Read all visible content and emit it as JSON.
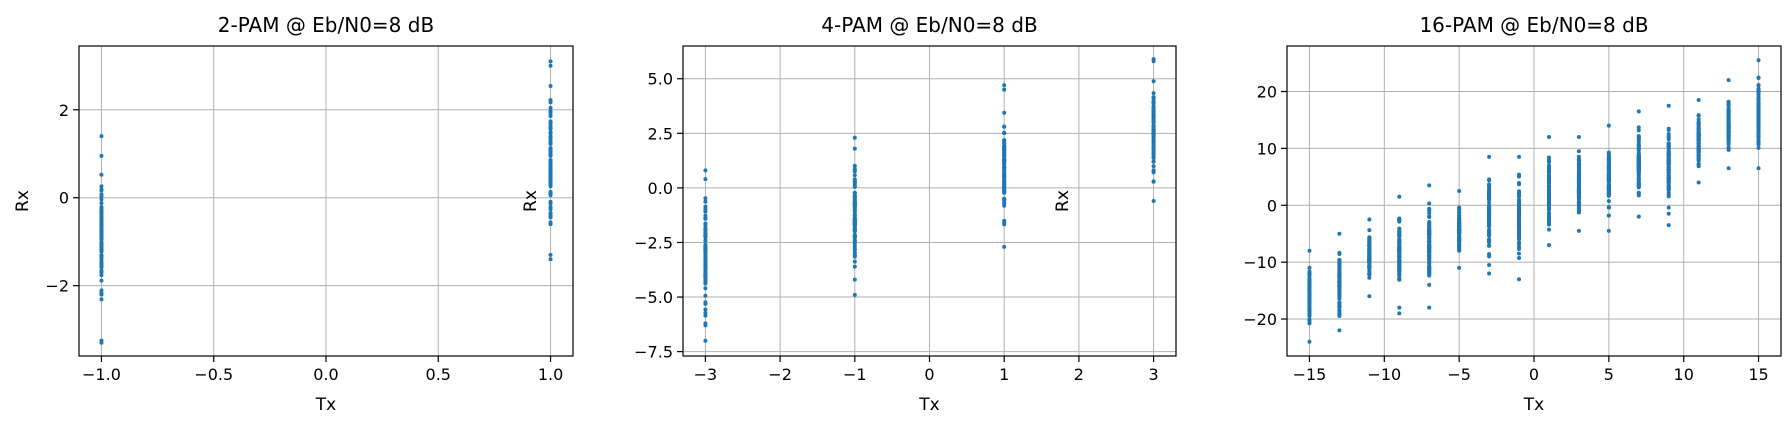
{
  "chart_data": [
    {
      "type": "scatter",
      "title": "2-PAM @ Eb/N0=8 dB",
      "xlabel": "Tx",
      "ylabel": "Rx",
      "xlim": [
        -1.1,
        1.1
      ],
      "ylim": [
        -3.6,
        3.45
      ],
      "xticks": [
        -1.0,
        -0.5,
        0.0,
        0.5,
        1.0
      ],
      "xtick_labels": [
        "−1.0",
        "−0.5",
        "0.0",
        "0.5",
        "1.0"
      ],
      "yticks": [
        -2,
        0,
        2
      ],
      "ytick_labels": [
        "−2",
        "0",
        "2"
      ],
      "grid": true,
      "color": "#1f77b4",
      "levels": [
        {
          "tx": -1,
          "rx_min": -3.3,
          "rx_max": 1.4,
          "outliers": [
            -3.3,
            -3.25,
            0.95,
            1.4
          ]
        },
        {
          "tx": 1,
          "rx_min": -1.4,
          "rx_max": 3.1,
          "outliers": [
            -1.4,
            -1.3,
            3.0,
            3.1
          ]
        }
      ]
    },
    {
      "type": "scatter",
      "title": "4-PAM @ Eb/N0=8 dB",
      "xlabel": "Tx",
      "ylabel": "Rx",
      "xlim": [
        -3.3,
        3.3
      ],
      "ylim": [
        -7.7,
        6.5
      ],
      "xticks": [
        -3,
        -2,
        -1,
        0,
        1,
        2,
        3
      ],
      "xtick_labels": [
        "−3",
        "−2",
        "−1",
        "0",
        "1",
        "2",
        "3"
      ],
      "yticks": [
        -7.5,
        -5.0,
        -2.5,
        0.0,
        2.5,
        5.0
      ],
      "ytick_labels": [
        "−7.5",
        "−5.0",
        "−2.5",
        "0.0",
        "2.5",
        "5.0"
      ],
      "grid": true,
      "color": "#1f77b4",
      "levels": [
        {
          "tx": -3,
          "rx_min": -7.0,
          "rx_max": 0.8,
          "outliers": [
            -7.0,
            -6.3,
            0.4,
            0.8
          ]
        },
        {
          "tx": -1,
          "rx_min": -4.9,
          "rx_max": 2.3,
          "outliers": [
            -4.9,
            -4.2,
            1.8,
            2.3
          ]
        },
        {
          "tx": 1,
          "rx_min": -2.7,
          "rx_max": 4.7,
          "outliers": [
            -2.7,
            -1.6,
            4.5,
            4.7
          ]
        },
        {
          "tx": 3,
          "rx_min": -0.6,
          "rx_max": 5.9,
          "outliers": [
            -0.6,
            0.3,
            5.8,
            5.9
          ]
        }
      ]
    },
    {
      "type": "scatter",
      "title": "16-PAM @ Eb/N0=8 dB",
      "xlabel": "Tx",
      "ylabel": "Rx",
      "xlim": [
        -16.5,
        16.5
      ],
      "ylim": [
        -26.5,
        28
      ],
      "xticks": [
        -15,
        -10,
        -5,
        0,
        5,
        10,
        15
      ],
      "xtick_labels": [
        "−15",
        "−10",
        "−5",
        "0",
        "5",
        "10",
        "15"
      ],
      "yticks": [
        -20,
        -10,
        0,
        10,
        20
      ],
      "ytick_labels": [
        "−20",
        "−10",
        "0",
        "10",
        "20"
      ],
      "grid": true,
      "color": "#1f77b4",
      "levels": [
        {
          "tx": -15,
          "rx_min": -24,
          "rx_max": -8,
          "outliers": [
            -24,
            -8
          ]
        },
        {
          "tx": -13,
          "rx_min": -22,
          "rx_max": -5,
          "outliers": [
            -22,
            -19,
            -5
          ]
        },
        {
          "tx": -11,
          "rx_min": -16,
          "rx_max": -2.5,
          "outliers": [
            -16,
            -2.5
          ]
        },
        {
          "tx": -9,
          "rx_min": -19,
          "rx_max": 1.5,
          "outliers": [
            -19,
            -18,
            1.5
          ]
        },
        {
          "tx": -7,
          "rx_min": -18,
          "rx_max": 3.5,
          "outliers": [
            -18,
            -14,
            3.5
          ]
        },
        {
          "tx": -5,
          "rx_min": -11,
          "rx_max": 2.5,
          "outliers": [
            -11,
            2.5
          ]
        },
        {
          "tx": -3,
          "rx_min": -12,
          "rx_max": 8.5,
          "outliers": [
            -12,
            -10.5,
            8.5
          ]
        },
        {
          "tx": -1,
          "rx_min": -13,
          "rx_max": 8.5,
          "outliers": [
            -13,
            8.5
          ]
        },
        {
          "tx": 1,
          "rx_min": -7,
          "rx_max": 12,
          "outliers": [
            -7,
            12
          ]
        },
        {
          "tx": 3,
          "rx_min": -4.5,
          "rx_max": 12,
          "outliers": [
            -4.5,
            12
          ]
        },
        {
          "tx": 5,
          "rx_min": -4.5,
          "rx_max": 14,
          "outliers": [
            -4.5,
            14
          ]
        },
        {
          "tx": 7,
          "rx_min": -2,
          "rx_max": 16.5,
          "outliers": [
            -2,
            16.5
          ]
        },
        {
          "tx": 9,
          "rx_min": -3.5,
          "rx_max": 17.5,
          "outliers": [
            -3.5,
            -1.5,
            17.5
          ]
        },
        {
          "tx": 11,
          "rx_min": 4,
          "rx_max": 18.5,
          "outliers": [
            4,
            18.5
          ]
        },
        {
          "tx": 13,
          "rx_min": 6.5,
          "rx_max": 22,
          "outliers": [
            6.5,
            22
          ]
        },
        {
          "tx": 15,
          "rx_min": 6.5,
          "rx_max": 25.5,
          "outliers": [
            6.5,
            25.5
          ]
        }
      ]
    }
  ]
}
